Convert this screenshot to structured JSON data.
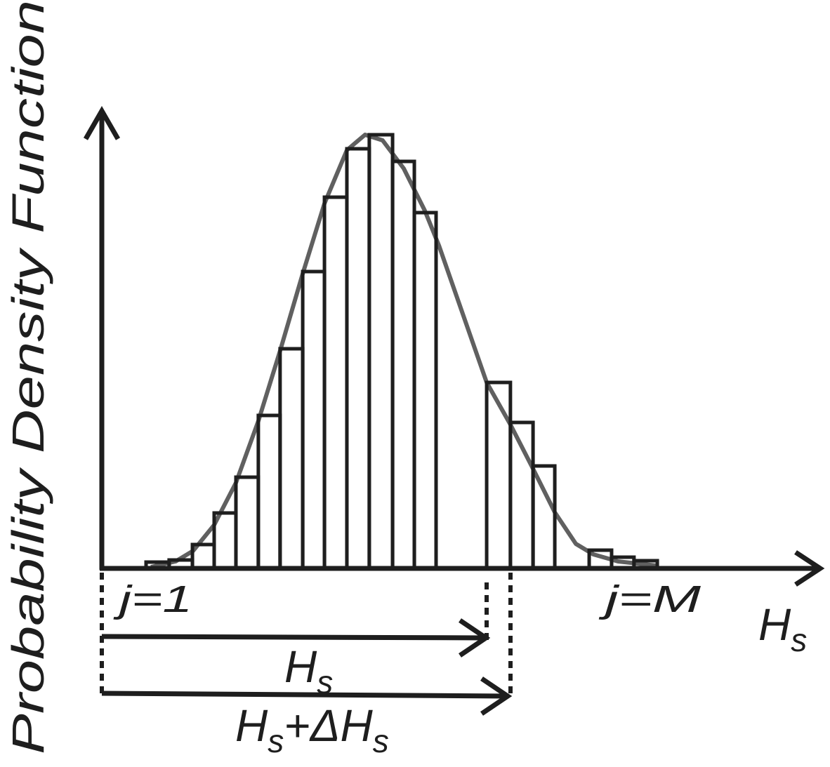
{
  "labels": {
    "y_axis": "Probability Density Function",
    "x_axis": "H",
    "x_axis_sub": "s",
    "j_first": "j=1",
    "j_last": "j=M",
    "arrow1_main": "H",
    "arrow1_sub": "s",
    "arrow2_main1": "H",
    "arrow2_sub1": "s",
    "arrow2_plus": "+ΔH",
    "arrow2_sub2": "s"
  },
  "colors": {
    "ink": "#1e1e1e",
    "curve": "#606060",
    "bar_fill": "#ffffff"
  },
  "chart_data": {
    "type": "bar",
    "title": "",
    "xlabel": "Hs",
    "ylabel": "Probability Density Function",
    "bins": [
      {
        "x0": 0.0,
        "x1": 1.04,
        "h": 9
      },
      {
        "x0": 1.04,
        "x1": 2.09,
        "h": 12
      },
      {
        "x0": 2.09,
        "x1": 3.07,
        "h": 34
      },
      {
        "x0": 3.07,
        "x1": 4.05,
        "h": 79
      },
      {
        "x0": 4.05,
        "x1": 5.06,
        "h": 130
      },
      {
        "x0": 5.06,
        "x1": 6.04,
        "h": 218
      },
      {
        "x0": 6.04,
        "x1": 7.06,
        "h": 313
      },
      {
        "x0": 7.06,
        "x1": 8.04,
        "h": 423
      },
      {
        "x0": 8.04,
        "x1": 9.05,
        "h": 529
      },
      {
        "x0": 9.05,
        "x1": 10.06,
        "h": 598
      },
      {
        "x0": 10.06,
        "x1": 11.11,
        "h": 618
      },
      {
        "x0": 11.11,
        "x1": 12.09,
        "h": 580
      },
      {
        "x0": 12.09,
        "x1": 13.07,
        "h": 507
      },
      {
        "x0": 15.35,
        "x1": 16.42,
        "h": 265
      },
      {
        "x0": 16.42,
        "x1": 17.44,
        "h": 208
      },
      {
        "x0": 17.44,
        "x1": 18.42,
        "h": 146
      },
      {
        "x0": 19.97,
        "x1": 20.98,
        "h": 26
      },
      {
        "x0": 20.98,
        "x1": 21.99,
        "h": 16
      },
      {
        "x0": 21.99,
        "x1": 23.04,
        "h": 11
      }
    ],
    "curve": [
      [
        0.22,
        2
      ],
      [
        1.33,
        10
      ],
      [
        2.12,
        25
      ],
      [
        3.07,
        62
      ],
      [
        4.05,
        122
      ],
      [
        5.06,
        210
      ],
      [
        6.04,
        310
      ],
      [
        7.06,
        420
      ],
      [
        8.04,
        520
      ],
      [
        9.05,
        596
      ],
      [
        9.87,
        618
      ],
      [
        10.66,
        610
      ],
      [
        11.61,
        570
      ],
      [
        12.56,
        510
      ],
      [
        13.2,
        460
      ],
      [
        15.35,
        265
      ],
      [
        16.42,
        205
      ],
      [
        17.44,
        142
      ],
      [
        18.42,
        80
      ],
      [
        19.37,
        35
      ],
      [
        20.16,
        20
      ],
      [
        21.27,
        10
      ],
      [
        23.0,
        4
      ]
    ],
    "markers": {
      "hs": 15.35,
      "hs_plus_dhs": 16.42
    }
  }
}
